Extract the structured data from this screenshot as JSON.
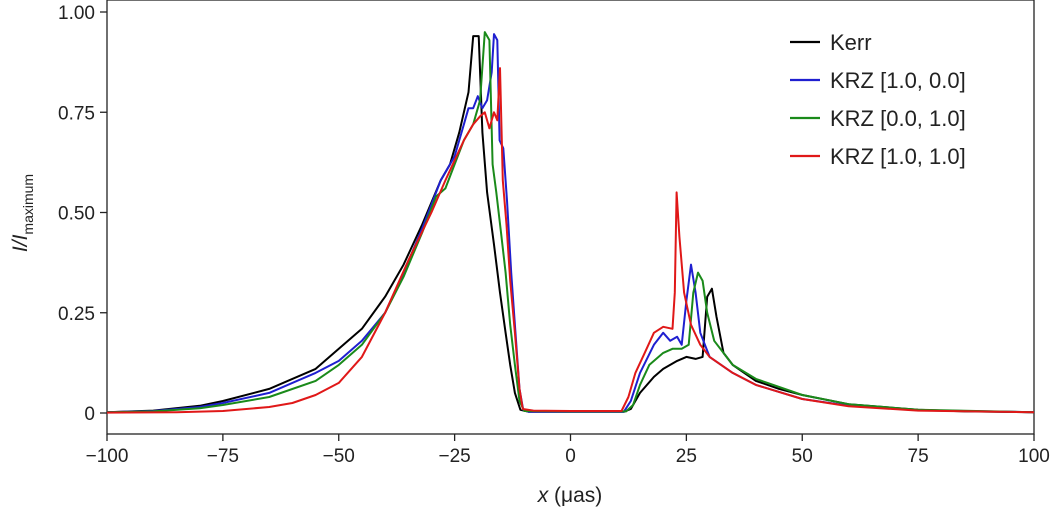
{
  "chart_data": {
    "type": "line",
    "title": "",
    "xlabel": "x (μas)",
    "xlabel_var": "x",
    "xlabel_unit": " (μas)",
    "ylabel": "I/I_maximum",
    "ylabel_main": "I/I",
    "ylabel_sub": "maximum",
    "xlim": [
      -100,
      100
    ],
    "ylim": [
      0,
      1.0
    ],
    "xticks": [
      -100,
      -75,
      -50,
      -25,
      0,
      25,
      50,
      75,
      100
    ],
    "xtick_labels": [
      "−100",
      "−75",
      "−50",
      "−25",
      "0",
      "25",
      "50",
      "75",
      "100"
    ],
    "yticks": [
      0,
      0.25,
      0.5,
      0.75,
      1.0
    ],
    "ytick_labels": [
      "0",
      "0.25",
      "0.50",
      "0.75",
      "1.00"
    ],
    "grid": false,
    "legend_position": "top-right",
    "series": [
      {
        "name": "Kerr",
        "color": "#000000",
        "points": [
          [
            -100,
            0.002
          ],
          [
            -90,
            0.006
          ],
          [
            -80,
            0.018
          ],
          [
            -75,
            0.03
          ],
          [
            -65,
            0.06
          ],
          [
            -55,
            0.11
          ],
          [
            -50,
            0.16
          ],
          [
            -45,
            0.21
          ],
          [
            -40,
            0.29
          ],
          [
            -36,
            0.37
          ],
          [
            -32,
            0.47
          ],
          [
            -28,
            0.58
          ],
          [
            -26,
            0.62
          ],
          [
            -24,
            0.7
          ],
          [
            -22,
            0.8
          ],
          [
            -21,
            0.94
          ],
          [
            -19.8,
            0.94
          ],
          [
            -19,
            0.7
          ],
          [
            -18,
            0.55
          ],
          [
            -16.5,
            0.42
          ],
          [
            -15.2,
            0.3
          ],
          [
            -14,
            0.2
          ],
          [
            -13,
            0.12
          ],
          [
            -12,
            0.05
          ],
          [
            -10.8,
            0.008
          ],
          [
            -9,
            0.003
          ],
          [
            0,
            0.003
          ],
          [
            11.5,
            0.003
          ],
          [
            13,
            0.01
          ],
          [
            15,
            0.05
          ],
          [
            18,
            0.09
          ],
          [
            20,
            0.11
          ],
          [
            23,
            0.13
          ],
          [
            25,
            0.14
          ],
          [
            27,
            0.135
          ],
          [
            28.5,
            0.14
          ],
          [
            29.5,
            0.29
          ],
          [
            30.5,
            0.31
          ],
          [
            31.5,
            0.24
          ],
          [
            33,
            0.15
          ],
          [
            35,
            0.12
          ],
          [
            40,
            0.08
          ],
          [
            45,
            0.06
          ],
          [
            50,
            0.045
          ],
          [
            60,
            0.022
          ],
          [
            75,
            0.008
          ],
          [
            85,
            0.004
          ],
          [
            100,
            0.002
          ]
        ]
      },
      {
        "name": "KRZ [1.0, 0.0]",
        "color": "#1f1fd0",
        "points": [
          [
            -100,
            0.002
          ],
          [
            -90,
            0.005
          ],
          [
            -80,
            0.015
          ],
          [
            -75,
            0.025
          ],
          [
            -65,
            0.05
          ],
          [
            -55,
            0.1
          ],
          [
            -50,
            0.13
          ],
          [
            -45,
            0.18
          ],
          [
            -40,
            0.25
          ],
          [
            -36,
            0.35
          ],
          [
            -32,
            0.46
          ],
          [
            -28,
            0.58
          ],
          [
            -25,
            0.64
          ],
          [
            -23,
            0.72
          ],
          [
            -22,
            0.76
          ],
          [
            -21,
            0.76
          ],
          [
            -20,
            0.79
          ],
          [
            -19,
            0.76
          ],
          [
            -18,
            0.78
          ],
          [
            -17,
            0.85
          ],
          [
            -16.5,
            0.945
          ],
          [
            -15.8,
            0.93
          ],
          [
            -15.3,
            0.68
          ],
          [
            -14.5,
            0.66
          ],
          [
            -13.7,
            0.53
          ],
          [
            -12.8,
            0.35
          ],
          [
            -12,
            0.22
          ],
          [
            -11,
            0.06
          ],
          [
            -10.2,
            0.008
          ],
          [
            -9,
            0.003
          ],
          [
            0,
            0.003
          ],
          [
            11.5,
            0.003
          ],
          [
            13,
            0.03
          ],
          [
            15,
            0.1
          ],
          [
            18,
            0.17
          ],
          [
            20,
            0.2
          ],
          [
            21.5,
            0.18
          ],
          [
            23,
            0.19
          ],
          [
            24,
            0.17
          ],
          [
            25,
            0.28
          ],
          [
            26,
            0.37
          ],
          [
            27,
            0.3
          ],
          [
            28,
            0.2
          ],
          [
            30,
            0.14
          ],
          [
            35,
            0.1
          ],
          [
            40,
            0.07
          ],
          [
            50,
            0.035
          ],
          [
            60,
            0.018
          ],
          [
            75,
            0.007
          ],
          [
            100,
            0.002
          ]
        ]
      },
      {
        "name": "KRZ [0.0, 1.0]",
        "color": "#1a8a1a",
        "points": [
          [
            -100,
            0.002
          ],
          [
            -90,
            0.004
          ],
          [
            -80,
            0.012
          ],
          [
            -75,
            0.02
          ],
          [
            -65,
            0.04
          ],
          [
            -55,
            0.08
          ],
          [
            -50,
            0.12
          ],
          [
            -45,
            0.17
          ],
          [
            -40,
            0.25
          ],
          [
            -36,
            0.34
          ],
          [
            -32,
            0.45
          ],
          [
            -29,
            0.54
          ],
          [
            -27,
            0.56
          ],
          [
            -25,
            0.62
          ],
          [
            -23,
            0.68
          ],
          [
            -21,
            0.72
          ],
          [
            -19.5,
            0.78
          ],
          [
            -18.5,
            0.95
          ],
          [
            -17.5,
            0.93
          ],
          [
            -16.8,
            0.62
          ],
          [
            -16,
            0.55
          ],
          [
            -15,
            0.45
          ],
          [
            -14,
            0.35
          ],
          [
            -13,
            0.22
          ],
          [
            -12,
            0.12
          ],
          [
            -11,
            0.03
          ],
          [
            -10,
            0.005
          ],
          [
            0,
            0.004
          ],
          [
            12,
            0.004
          ],
          [
            13.5,
            0.02
          ],
          [
            15,
            0.07
          ],
          [
            17,
            0.12
          ],
          [
            20,
            0.15
          ],
          [
            22,
            0.16
          ],
          [
            24,
            0.16
          ],
          [
            25.5,
            0.17
          ],
          [
            26.5,
            0.3
          ],
          [
            27.5,
            0.35
          ],
          [
            28.5,
            0.33
          ],
          [
            29.5,
            0.25
          ],
          [
            31,
            0.18
          ],
          [
            35,
            0.12
          ],
          [
            40,
            0.085
          ],
          [
            50,
            0.045
          ],
          [
            60,
            0.022
          ],
          [
            75,
            0.008
          ],
          [
            100,
            0.002
          ]
        ]
      },
      {
        "name": "KRZ [1.0, 1.0]",
        "color": "#e01818",
        "points": [
          [
            -100,
            0.001
          ],
          [
            -85,
            0.002
          ],
          [
            -75,
            0.005
          ],
          [
            -65,
            0.015
          ],
          [
            -60,
            0.025
          ],
          [
            -55,
            0.045
          ],
          [
            -50,
            0.075
          ],
          [
            -45,
            0.14
          ],
          [
            -40,
            0.25
          ],
          [
            -35,
            0.38
          ],
          [
            -30,
            0.5
          ],
          [
            -27,
            0.58
          ],
          [
            -25,
            0.63
          ],
          [
            -23,
            0.68
          ],
          [
            -21,
            0.72
          ],
          [
            -19.5,
            0.74
          ],
          [
            -18.5,
            0.75
          ],
          [
            -17.5,
            0.71
          ],
          [
            -16.5,
            0.75
          ],
          [
            -15.8,
            0.73
          ],
          [
            -15.2,
            0.86
          ],
          [
            -14.6,
            0.58
          ],
          [
            -13.8,
            0.47
          ],
          [
            -13,
            0.33
          ],
          [
            -12,
            0.2
          ],
          [
            -11,
            0.06
          ],
          [
            -10.3,
            0.01
          ],
          [
            -8,
            0.006
          ],
          [
            0,
            0.005
          ],
          [
            11,
            0.005
          ],
          [
            12.5,
            0.04
          ],
          [
            14,
            0.1
          ],
          [
            16,
            0.15
          ],
          [
            18,
            0.2
          ],
          [
            20,
            0.215
          ],
          [
            22,
            0.21
          ],
          [
            22.5,
            0.3
          ],
          [
            22.9,
            0.55
          ],
          [
            23.5,
            0.44
          ],
          [
            24.5,
            0.3
          ],
          [
            26,
            0.22
          ],
          [
            28,
            0.17
          ],
          [
            30,
            0.14
          ],
          [
            35,
            0.1
          ],
          [
            40,
            0.07
          ],
          [
            50,
            0.035
          ],
          [
            60,
            0.017
          ],
          [
            75,
            0.006
          ],
          [
            100,
            0.002
          ]
        ]
      }
    ]
  }
}
